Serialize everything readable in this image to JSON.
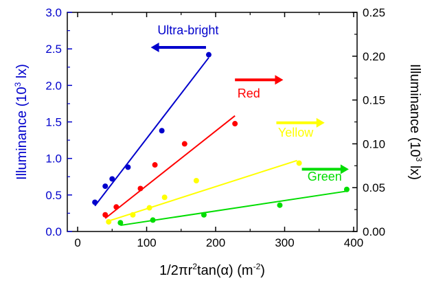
{
  "chart_data": {
    "type": "scatter",
    "x_axis": {
      "label_parts": [
        "1/2πr",
        "2",
        "tan(α) (m",
        "-2",
        ")"
      ],
      "range": [
        -15,
        405
      ],
      "ticks": [
        0,
        100,
        200,
        300,
        400
      ],
      "tick_labels": [
        "0",
        "100",
        "200",
        "300",
        "400"
      ]
    },
    "y_left": {
      "label_parts": [
        "Illuminance (10",
        "3",
        " lx)"
      ],
      "range": [
        0,
        3.0
      ],
      "ticks": [
        0,
        0.5,
        1.0,
        1.5,
        2.0,
        2.5,
        3.0
      ],
      "tick_labels": [
        "0.0",
        "0.5",
        "1.0",
        "1.5",
        "2.0",
        "2.5",
        "3.0"
      ],
      "color": "#0000cc"
    },
    "y_right": {
      "label_parts": [
        "Illuminance (10",
        "3",
        " lx)"
      ],
      "range": [
        0,
        0.25
      ],
      "ticks": [
        0,
        0.05,
        0.1,
        0.15,
        0.2,
        0.25
      ],
      "tick_labels": [
        "0.00",
        "0.05",
        "0.10",
        "0.15",
        "0.20",
        "0.25"
      ],
      "color": "#000000"
    },
    "series": [
      {
        "name": "Ultra-bright",
        "color": "#0000cc",
        "axis": "left",
        "arrow": "left",
        "label_at": [
          160,
          2.7
        ],
        "arrow_from": [
          186,
          2.52
        ],
        "arrow_to": [
          112,
          2.52
        ],
        "x": [
          25,
          40,
          50,
          73,
          122,
          190
        ],
        "y": [
          0.4,
          0.62,
          0.72,
          0.88,
          1.38,
          2.42
        ],
        "fit": [
          [
            25,
            0.35
          ],
          [
            190,
            2.38
          ]
        ]
      },
      {
        "name": "Red",
        "color": "#ff0000",
        "axis": "right",
        "arrow": "right",
        "label_at": [
          248,
          0.153
        ],
        "arrow_from": [
          228,
          0.173
        ],
        "arrow_to": [
          292,
          0.173
        ],
        "x": [
          40,
          56,
          91,
          112,
          155,
          228
        ],
        "y": [
          0.019,
          0.028,
          0.049,
          0.076,
          0.1,
          0.123
        ],
        "fit": [
          [
            40,
            0.015
          ],
          [
            228,
            0.132
          ]
        ]
      },
      {
        "name": "Yellow",
        "color": "#ffff00",
        "axis": "right",
        "arrow": "right",
        "label_at": [
          316,
          0.108
        ],
        "arrow_from": [
          288,
          0.124
        ],
        "arrow_to": [
          352,
          0.124
        ],
        "x": [
          45,
          80,
          104,
          126,
          172,
          321
        ],
        "y": [
          0.011,
          0.019,
          0.027,
          0.039,
          0.058,
          0.078
        ],
        "fit": [
          [
            45,
            0.012
          ],
          [
            318,
            0.081
          ]
        ]
      },
      {
        "name": "Green",
        "color": "#00dd00",
        "axis": "right",
        "arrow": "right",
        "label_at": [
          358,
          0.058
        ],
        "arrow_from": [
          325,
          0.071
        ],
        "arrow_to": [
          387,
          0.071
        ],
        "x": [
          62,
          109,
          183,
          293,
          390
        ],
        "y": [
          0.01,
          0.013,
          0.019,
          0.03,
          0.048
        ],
        "fit": [
          [
            62,
            0.007
          ],
          [
            390,
            0.046
          ]
        ]
      }
    ]
  }
}
